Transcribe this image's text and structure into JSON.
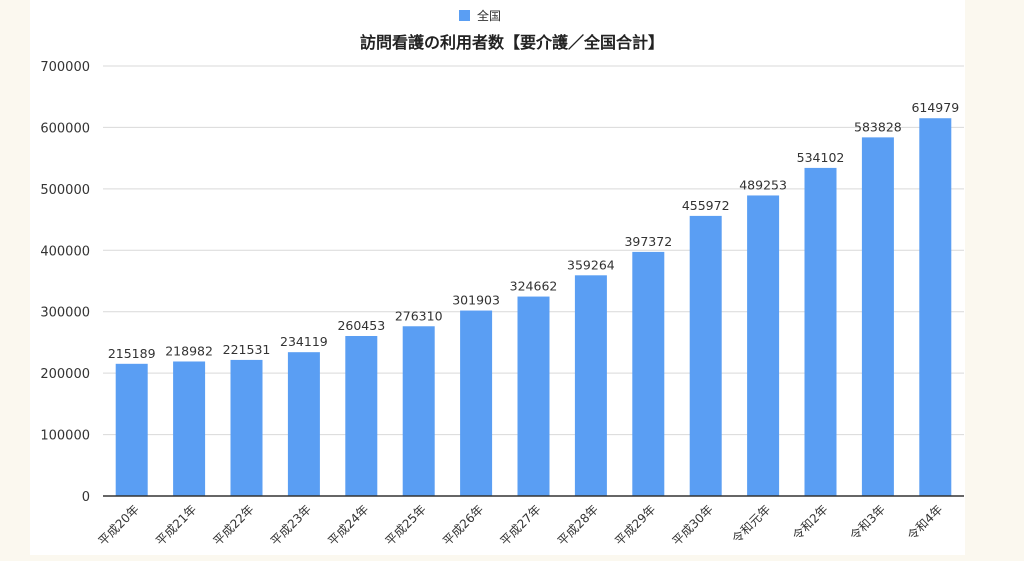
{
  "chart_data": {
    "type": "bar",
    "title": "訪問看護の利用者数【要介護／全国合計】",
    "legend": {
      "position": "top-center",
      "entries": [
        "全国"
      ]
    },
    "categories": [
      "平成20年",
      "平成21年",
      "平成22年",
      "平成23年",
      "平成24年",
      "平成25年",
      "平成26年",
      "平成27年",
      "平成28年",
      "平成29年",
      "平成30年",
      "令和元年",
      "令和2年",
      "令和3年",
      "令和4年"
    ],
    "series": [
      {
        "name": "全国",
        "values": [
          215189,
          218982,
          221531,
          234119,
          260453,
          276310,
          301903,
          324662,
          359264,
          397372,
          455972,
          489253,
          534102,
          583828,
          614979
        ]
      }
    ],
    "ylim": [
      0,
      700000
    ],
    "yticks": [
      "0",
      "100000",
      "200000",
      "300000",
      "400000",
      "500000",
      "600000",
      "700000"
    ],
    "xlabel": "",
    "ylabel": "",
    "grid": true,
    "colors": {
      "bar": "#5a9ef3",
      "grid": "#d9d9d9",
      "axis": "#333333",
      "background": "#fbf8ef"
    }
  }
}
